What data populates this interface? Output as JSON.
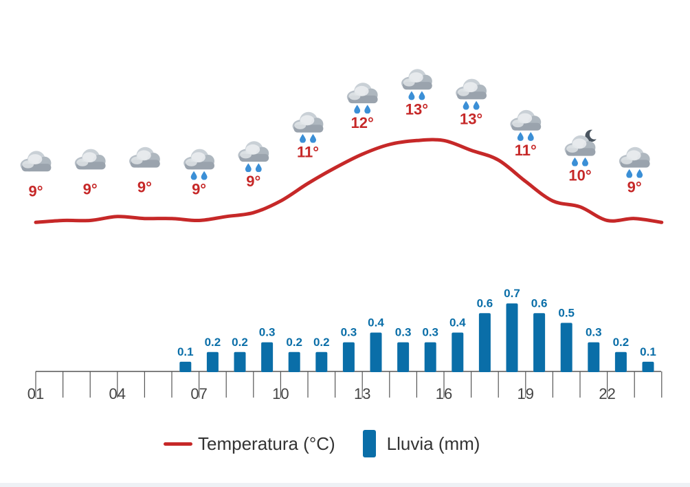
{
  "chart_data": {
    "type": "line+bar",
    "hours": [
      1,
      2,
      3,
      4,
      5,
      6,
      7,
      8,
      9,
      10,
      11,
      12,
      13,
      14,
      15,
      16,
      17,
      18,
      19,
      20,
      21,
      22,
      23,
      24
    ],
    "x_tick_labels": [
      {
        "hour": 1,
        "label": "01"
      },
      {
        "hour": 4,
        "label": "04"
      },
      {
        "hour": 7,
        "label": "07"
      },
      {
        "hour": 10,
        "label": "10"
      },
      {
        "hour": 13,
        "label": "13"
      },
      {
        "hour": 16,
        "label": "16"
      },
      {
        "hour": 19,
        "label": "19"
      },
      {
        "hour": 22,
        "label": "22"
      }
    ],
    "forecast_points": [
      {
        "hour": 1,
        "temp_label": "9°",
        "icon": "cloud-icon"
      },
      {
        "hour": 3,
        "temp_label": "9°",
        "icon": "cloud-icon"
      },
      {
        "hour": 5,
        "temp_label": "9°",
        "icon": "cloud-icon"
      },
      {
        "hour": 7,
        "temp_label": "9°",
        "icon": "cloud-rain-icon"
      },
      {
        "hour": 9,
        "temp_label": "9°",
        "icon": "cloud-rain-icon"
      },
      {
        "hour": 11,
        "temp_label": "11°",
        "icon": "cloud-rain-icon"
      },
      {
        "hour": 13,
        "temp_label": "12°",
        "icon": "cloud-rain-icon"
      },
      {
        "hour": 15,
        "temp_label": "13°",
        "icon": "cloud-rain-icon"
      },
      {
        "hour": 17,
        "temp_label": "13°",
        "icon": "cloud-rain-icon"
      },
      {
        "hour": 19,
        "temp_label": "11°",
        "icon": "cloud-rain-icon"
      },
      {
        "hour": 21,
        "temp_label": "10°",
        "icon": "moon-cloud-rain-icon"
      },
      {
        "hour": 23,
        "temp_label": "9°",
        "icon": "cloud-rain-icon"
      }
    ],
    "temperature_series": {
      "name": "Temperatura (°C)",
      "values": [
        8.8,
        8.9,
        8.9,
        9.1,
        9.0,
        9.0,
        8.9,
        9.1,
        9.3,
        9.9,
        10.8,
        11.6,
        12.3,
        12.8,
        13.0,
        13.0,
        12.5,
        12.0,
        10.9,
        9.9,
        9.6,
        8.9,
        9.0,
        8.8
      ]
    },
    "rain_series": {
      "name": "Lluvia (mm)",
      "values": [
        0,
        0,
        0,
        0,
        0,
        0.1,
        0.2,
        0.2,
        0.3,
        0.2,
        0.2,
        0.3,
        0.4,
        0.3,
        0.3,
        0.4,
        0.6,
        0.7,
        0.6,
        0.5,
        0.3,
        0.2,
        0.1,
        0
      ],
      "labels": [
        "",
        "",
        "",
        "",
        "",
        "0.1",
        "0.2",
        "0.2",
        "0.3",
        "0.2",
        "0.2",
        "0.3",
        "0.4",
        "0.3",
        "0.3",
        "0.4",
        "0.6",
        "0.7",
        "0.6",
        "0.5",
        "0.3",
        "0.2",
        "0.1",
        ""
      ]
    },
    "temp_range": [
      8,
      14
    ],
    "rain_range": [
      0,
      0.8
    ],
    "colors": {
      "temperature": "#c62828",
      "rain": "#0a6ea8",
      "axis": "#555555",
      "tick_text": "#444444",
      "cloud_light": "#eceff1",
      "cloud_dark": "#9aa3ad",
      "raindrop": "#3b8fd6",
      "moon": "#4a5560"
    },
    "legend": {
      "temperature_label": "Temperatura (°C)",
      "rain_label": "Lluvia (mm)",
      "placement": "bottom-center"
    }
  }
}
